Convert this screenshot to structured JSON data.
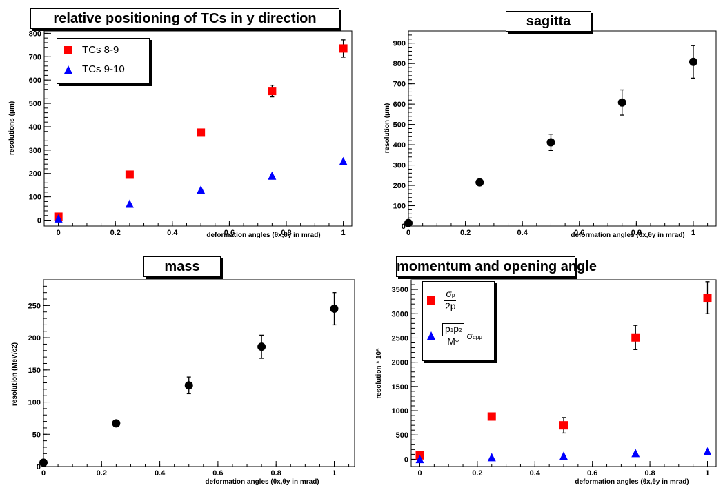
{
  "colors": {
    "red": "#ff0000",
    "blue": "#0000ff",
    "black": "#000000"
  },
  "panels": [
    {
      "title": "relative positioning of TCs in y direction",
      "xlabel": "deformation angles (θx,θy in mrad)",
      "ylabel": "resolutions (μm)"
    },
    {
      "title": "sagitta",
      "xlabel": "deformation angles (θx,θy in mrad)",
      "ylabel": "resolution (μm)"
    },
    {
      "title": "mass",
      "xlabel": "deformation angles (θx,θy in mrad)",
      "ylabel": "resolution (MeV/c2)"
    },
    {
      "title": "momentum and opening angle",
      "xlabel": "deformation angles (θx,θy in mrad)",
      "ylabel": "resolution * 10⁵"
    }
  ],
  "legends": {
    "p1": {
      "entries": [
        "TCs 8-9",
        "TCs 9-10"
      ]
    },
    "p4": {
      "sigma_p": "σ",
      "sigma_p_sub": "p",
      "two_p": "2p",
      "p1p2": "p",
      "p1_sub": "1",
      "p2": "p",
      "p2_sub": "2",
      "m": "M",
      "m_sub": "Υ",
      "sigma_alpha": "σ",
      "alpha_sub": "αμμ"
    }
  },
  "chart_data": [
    {
      "type": "scatter",
      "title": "relative positioning of TCs in y direction",
      "xlabel": "deformation angles (θx,θy in mrad)",
      "ylabel": "resolutions (μm)",
      "xlim": [
        -0.05,
        1.03
      ],
      "ylim": [
        -25,
        810
      ],
      "xticks": [
        0,
        0.2,
        0.4,
        0.6,
        0.8,
        1
      ],
      "yticks": [
        0,
        100,
        200,
        300,
        400,
        500,
        600,
        700,
        800
      ],
      "legend": "top-left",
      "grid": false,
      "series": [
        {
          "name": "TCs 8-9",
          "marker": "square",
          "color": "#ff0000",
          "x": [
            0,
            0.25,
            0.5,
            0.75,
            1
          ],
          "y": [
            15,
            195,
            375,
            553,
            735
          ],
          "err": [
            0,
            0,
            0,
            25,
            37
          ]
        },
        {
          "name": "TCs 9-10",
          "marker": "triangle",
          "color": "#0000ff",
          "x": [
            0,
            0.25,
            0.5,
            0.75,
            1
          ],
          "y": [
            5,
            68,
            128,
            188,
            250
          ],
          "err": [
            0,
            0,
            0,
            0,
            0
          ]
        }
      ]
    },
    {
      "type": "scatter",
      "title": "sagitta",
      "xlabel": "deformation angles (θx,θy in mrad)",
      "ylabel": "resolution (μm)",
      "xlim": [
        0,
        1.08
      ],
      "ylim": [
        0,
        960
      ],
      "xticks": [
        0,
        0.2,
        0.4,
        0.6,
        0.8,
        1
      ],
      "yticks": [
        0,
        100,
        200,
        300,
        400,
        500,
        600,
        700,
        800,
        900
      ],
      "grid": false,
      "series": [
        {
          "marker": "circle",
          "color": "#000000",
          "x": [
            0,
            0.25,
            0.5,
            0.75,
            1
          ],
          "y": [
            15,
            215,
            412,
            608,
            808
          ],
          "err": [
            0,
            0,
            40,
            62,
            80
          ]
        }
      ]
    },
    {
      "type": "scatter",
      "title": "mass",
      "xlabel": "deformation angles (θx,θy in mrad)",
      "ylabel": "resolution (MeV/c2)",
      "xlim": [
        0,
        1.07
      ],
      "ylim": [
        0,
        290
      ],
      "xticks": [
        0,
        0.2,
        0.4,
        0.6,
        0.8,
        1
      ],
      "yticks": [
        0,
        50,
        100,
        150,
        200,
        250
      ],
      "grid": false,
      "series": [
        {
          "marker": "circle",
          "color": "#000000",
          "x": [
            0,
            0.25,
            0.5,
            0.75,
            1
          ],
          "y": [
            6,
            67,
            126,
            186,
            245
          ],
          "err": [
            0,
            0,
            13,
            18,
            25
          ]
        }
      ]
    },
    {
      "type": "scatter",
      "title": "momentum and opening angle",
      "xlabel": "deformation angles (θx,θy in mrad)",
      "ylabel": "resolution * 10⁵",
      "xlim": [
        -0.03,
        1.03
      ],
      "ylim": [
        -150,
        3700
      ],
      "xticks": [
        0,
        0.2,
        0.4,
        0.6,
        0.8,
        1
      ],
      "yticks": [
        0,
        500,
        1000,
        1500,
        2000,
        2500,
        3000,
        3500
      ],
      "legend": "top-left",
      "grid": false,
      "series": [
        {
          "name": "σp/2p",
          "marker": "square",
          "color": "#ff0000",
          "x": [
            0,
            0.25,
            0.5,
            0.75,
            1
          ],
          "y": [
            80,
            880,
            700,
            2510,
            3330
          ],
          "err": [
            0,
            0,
            160,
            250,
            330
          ]
        },
        {
          "name": "√(p1p2)/MΥ σαμμ",
          "marker": "triangle",
          "color": "#0000ff",
          "x": [
            0,
            0.25,
            0.5,
            0.75,
            1
          ],
          "y": [
            -10,
            30,
            60,
            115,
            150
          ],
          "err": [
            0,
            0,
            0,
            0,
            0
          ]
        }
      ]
    }
  ]
}
